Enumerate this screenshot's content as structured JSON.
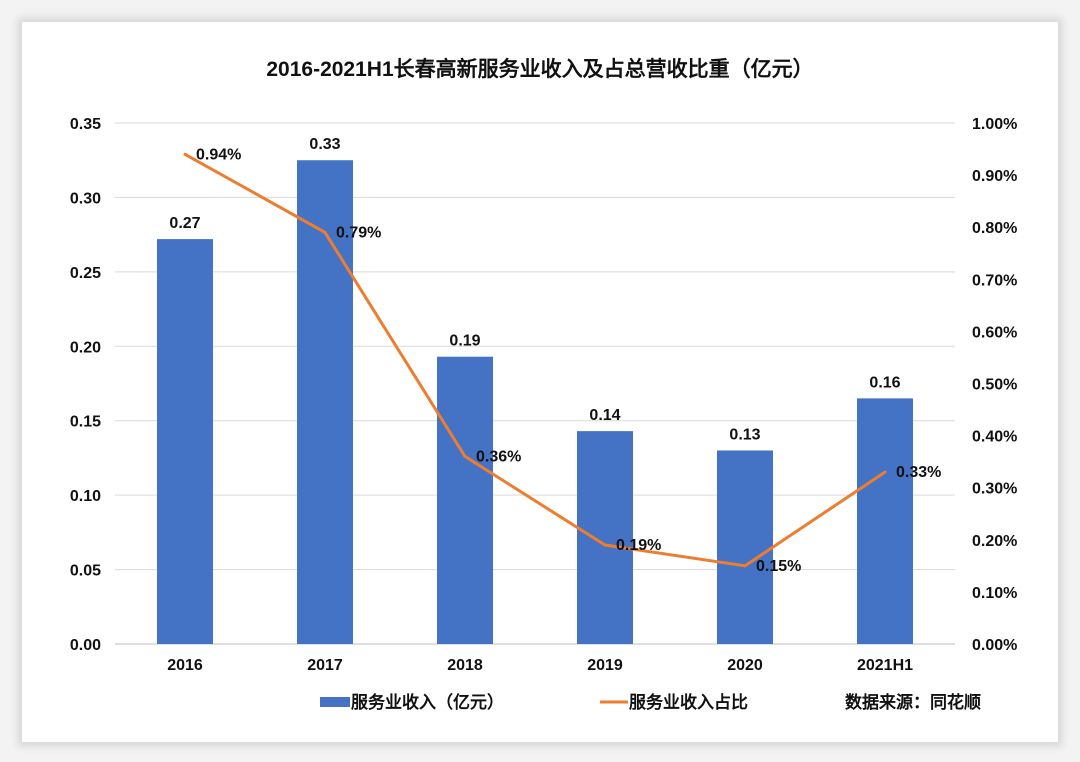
{
  "chart_data": {
    "type": "bar+line",
    "title": "2016-2021H1长春高新服务业收入及占总营收比重（亿元）",
    "categories": [
      "2016",
      "2017",
      "2018",
      "2019",
      "2020",
      "2021H1"
    ],
    "series": [
      {
        "name": "服务业收入（亿元）",
        "type": "bar",
        "axis": "left",
        "color": "#4472c4",
        "values": [
          0.272,
          0.325,
          0.193,
          0.143,
          0.13,
          0.165
        ],
        "labels": [
          "0.27",
          "0.33",
          "0.19",
          "0.14",
          "0.13",
          "0.16"
        ]
      },
      {
        "name": "服务业收入占比",
        "type": "line",
        "axis": "right",
        "color": "#ed7d31",
        "values": [
          0.94,
          0.79,
          0.36,
          0.19,
          0.15,
          0.33
        ],
        "labels": [
          "0.94%",
          "0.79%",
          "0.36%",
          "0.19%",
          "0.15%",
          "0.33%"
        ]
      }
    ],
    "y_left": {
      "range": [
        0,
        0.35
      ],
      "ticks": [
        "0.00",
        "0.05",
        "0.10",
        "0.15",
        "0.20",
        "0.25",
        "0.30",
        "0.35"
      ]
    },
    "y_right": {
      "range": [
        0,
        1.0
      ],
      "unit": "%",
      "ticks": [
        "0.00%",
        "0.10%",
        "0.20%",
        "0.30%",
        "0.40%",
        "0.50%",
        "0.60%",
        "0.70%",
        "0.80%",
        "0.90%",
        "1.00%"
      ]
    },
    "grid": true,
    "legend": "bottom",
    "source": "数据来源：同花顺"
  }
}
